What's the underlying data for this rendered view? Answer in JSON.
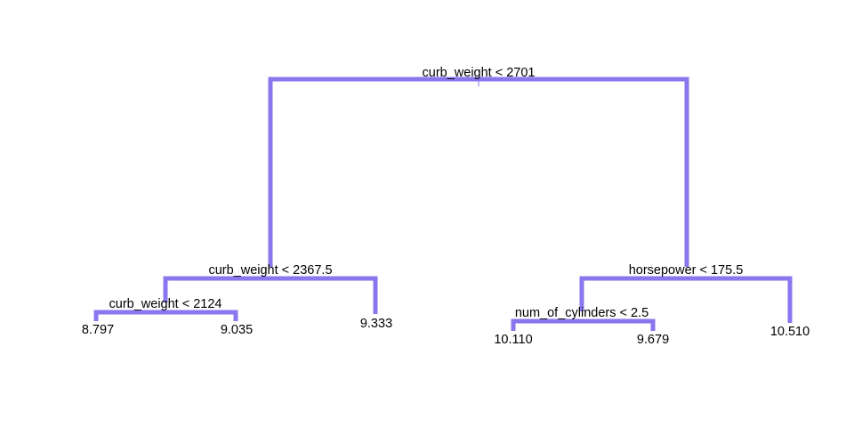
{
  "tree": {
    "color": "#8877ee",
    "splits": {
      "root": "curb_weight < 2701",
      "left": "curb_weight < 2367.5",
      "left_left": "curb_weight < 2124",
      "right": "horsepower < 175.5",
      "right_left": "num_of_cylinders < 2.5"
    },
    "leaves": {
      "ll_left": "8.797",
      "ll_right": "9.035",
      "l_right": "9.333",
      "rl_left": "10.110",
      "rl_right": "9.679",
      "r_right": "10.510"
    }
  }
}
